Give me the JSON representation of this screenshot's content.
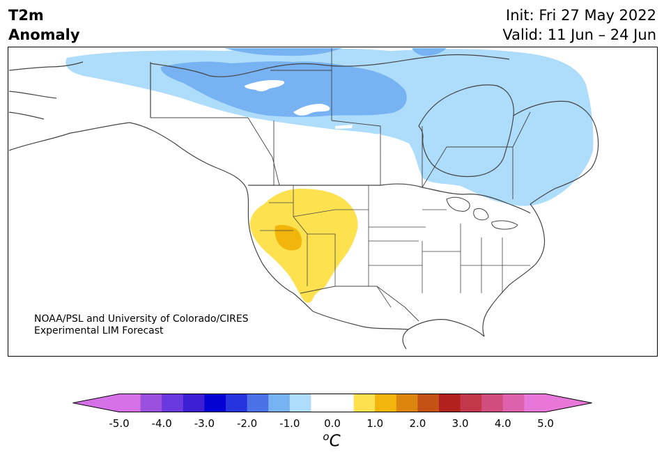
{
  "title": {
    "variable_line1": "T2m",
    "variable_line2": "Anomaly",
    "init": "Init: Fri 27 May 2022",
    "valid": "Valid: 11 Jun – 24 Jun"
  },
  "credit": {
    "line1": "NOAA/PSL and University of Colorado/CIRES",
    "line2": "Experimental LIM Forecast"
  },
  "map": {
    "region": "North America",
    "land_color": "#ffffff",
    "border_color": "#444444"
  },
  "colorbar": {
    "unit_super": "o",
    "unit_main": "C",
    "ticks": [
      "-5.0",
      "-4.0",
      "-3.0",
      "-2.0",
      "-1.0",
      "0.0",
      "1.0",
      "2.0",
      "3.0",
      "4.0",
      "5.0"
    ],
    "range": [
      -5.0,
      5.0
    ],
    "step": 0.5,
    "colors": [
      "#d670e8",
      "#9b50de",
      "#6b38dd",
      "#3c1fd3",
      "#0202d3",
      "#2534dc",
      "#4a72e6",
      "#77b2f2",
      "#aedcfb",
      "#ffffff",
      "#ffffff",
      "#fde14f",
      "#f2b50c",
      "#dc850f",
      "#c55215",
      "#b3211f",
      "#c3374b",
      "#d14d7d",
      "#de61ae",
      "#e877da"
    ],
    "min_extend_color": "#d670e8",
    "max_extend_color": "#e877da"
  }
}
